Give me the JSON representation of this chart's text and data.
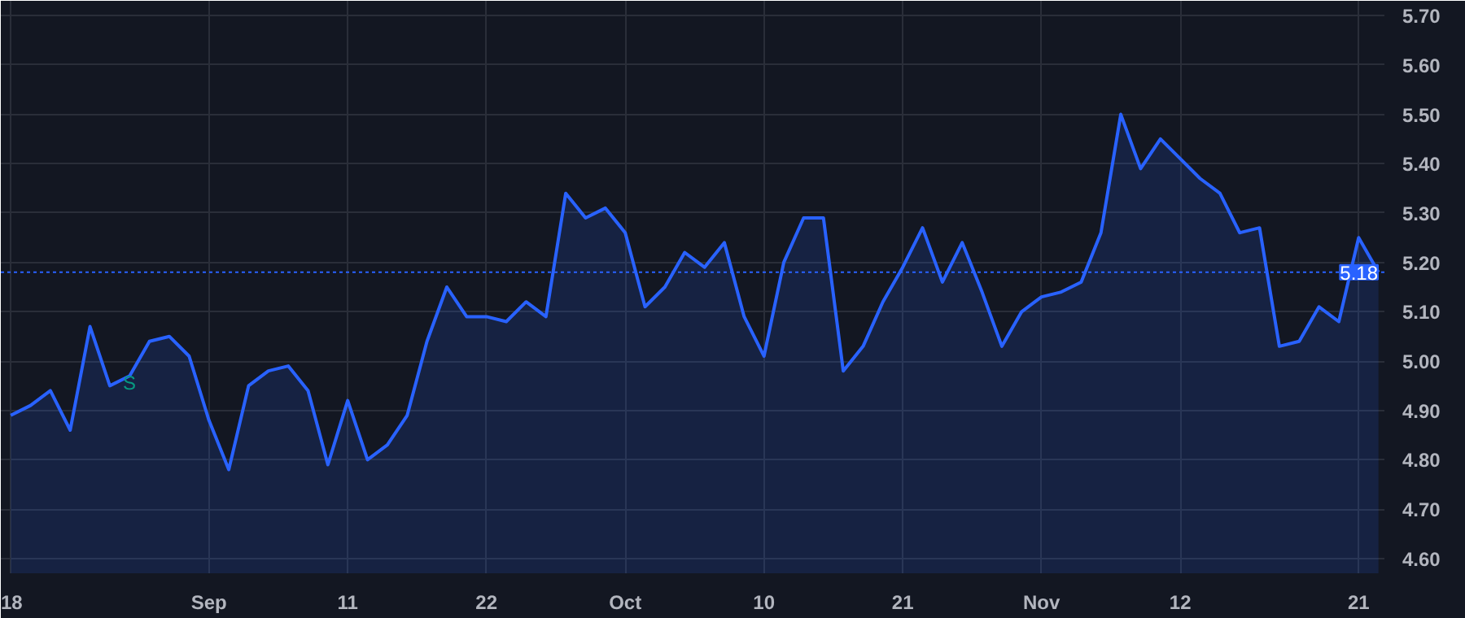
{
  "chart_data": {
    "type": "area",
    "color": "#2962ff",
    "categories": [
      "18",
      null,
      null,
      null,
      null,
      null,
      null,
      null,
      null,
      null,
      "Sep",
      null,
      null,
      null,
      null,
      null,
      null,
      "11",
      null,
      null,
      null,
      null,
      null,
      null,
      "22",
      null,
      null,
      null,
      null,
      null,
      null,
      "Oct",
      null,
      null,
      null,
      null,
      null,
      null,
      "10",
      null,
      null,
      null,
      null,
      null,
      null,
      "21",
      null,
      null,
      null,
      null,
      null,
      null,
      "Nov",
      null,
      null,
      null,
      null,
      null,
      null,
      "12",
      null,
      null,
      null,
      null,
      null,
      null,
      null,
      null,
      "21",
      null
    ],
    "values": [
      4.89,
      4.91,
      4.94,
      4.86,
      5.07,
      4.95,
      4.97,
      5.04,
      5.05,
      5.01,
      4.88,
      4.78,
      4.95,
      4.98,
      4.99,
      4.94,
      4.79,
      4.92,
      4.8,
      4.83,
      4.89,
      5.04,
      5.15,
      5.09,
      5.09,
      5.08,
      5.12,
      5.09,
      5.34,
      5.29,
      5.31,
      5.26,
      5.11,
      5.15,
      5.22,
      5.19,
      5.24,
      5.09,
      5.01,
      5.2,
      5.29,
      5.29,
      4.98,
      5.03,
      5.12,
      5.19,
      5.27,
      5.16,
      5.24,
      5.14,
      5.03,
      5.1,
      5.13,
      5.14,
      5.16,
      5.26,
      5.5,
      5.39,
      5.45,
      5.41,
      5.37,
      5.34,
      5.26,
      5.27,
      5.03,
      5.04,
      5.11,
      5.08,
      5.25,
      5.18
    ],
    "ylim": [
      4.57,
      5.73
    ],
    "yticks": [
      {
        "value": 4.6,
        "label": "4.60"
      },
      {
        "value": 4.7,
        "label": "4.70"
      },
      {
        "value": 4.8,
        "label": "4.80"
      },
      {
        "value": 4.9,
        "label": "4.90"
      },
      {
        "value": 5.0,
        "label": "5.00"
      },
      {
        "value": 5.1,
        "label": "5.10"
      },
      {
        "value": 5.2,
        "label": "5.20"
      },
      {
        "value": 5.3,
        "label": "5.30"
      },
      {
        "value": 5.4,
        "label": "5.40"
      },
      {
        "value": 5.5,
        "label": "5.50"
      },
      {
        "value": 5.6,
        "label": "5.60"
      },
      {
        "value": 5.7,
        "label": "5.70"
      }
    ],
    "grid": true,
    "ref_lines": [
      {
        "axis": "y",
        "value": 5.18,
        "label": "5.18",
        "color": "#2962ff",
        "line_style": "dotted"
      }
    ],
    "annotations": [
      "S"
    ]
  }
}
